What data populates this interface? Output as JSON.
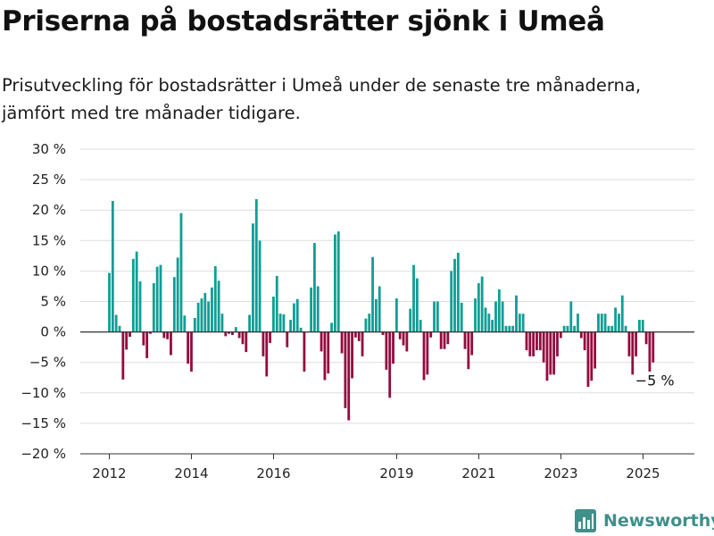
{
  "title": "Priserna på bostadsrätter sjönk i Umeå",
  "subtitle": "Prisutveckling för bostadsrätter i Umeå under de senaste tre månaderna, jämfört med tre månader tidigare.",
  "brand": {
    "name": "Newsworthy",
    "icon": "newsworthy-bar-chart-icon",
    "color": "#3f8f8b"
  },
  "colors": {
    "positive": "#0f9e94",
    "negative": "#940a3f",
    "grid": "#dddddd",
    "axis": "#333333"
  },
  "chart_data": {
    "type": "bar",
    "ylim": [
      -20,
      30
    ],
    "yticks": [
      30,
      25,
      20,
      15,
      10,
      5,
      0,
      -5,
      -10,
      -15,
      -20
    ],
    "ytick_labels": [
      "30 %",
      "25 %",
      "20 %",
      "15 %",
      "10 %",
      "5 %",
      "0 %",
      "−5 %",
      "−10 %",
      "−15 %",
      "−20 %"
    ],
    "xtick_labels": [
      {
        "label": "2012",
        "x": 2012.0
      },
      {
        "label": "2014",
        "x": 2014.0
      },
      {
        "label": "2016",
        "x": 2016.0
      },
      {
        "label": "2019",
        "x": 2019.0
      },
      {
        "label": "2021",
        "x": 2021.0
      },
      {
        "label": "2023",
        "x": 2023.0
      },
      {
        "label": "2025",
        "x": 2025.0
      }
    ],
    "x_start": 2012.0,
    "x_step": 0.0833,
    "values": [
      9.7,
      21.5,
      2.8,
      1.0,
      -7.8,
      -2.9,
      -0.8,
      12.0,
      13.2,
      8.3,
      -2.2,
      -4.3,
      -0.3,
      8.0,
      10.7,
      11.0,
      -1.0,
      -1.2,
      -3.8,
      9.0,
      12.2,
      19.5,
      2.7,
      -5.2,
      -6.5,
      2.3,
      4.8,
      5.5,
      6.4,
      5.0,
      7.3,
      10.8,
      8.4,
      3.0,
      -0.7,
      -0.3,
      -0.5,
      0.8,
      -1.0,
      -2.0,
      -3.3,
      2.8,
      17.8,
      21.8,
      15.0,
      -4.0,
      -7.3,
      -1.8,
      5.8,
      9.2,
      3.0,
      2.9,
      -2.5,
      2.0,
      4.7,
      5.4,
      0.7,
      -6.5,
      0.0,
      7.3,
      14.6,
      7.5,
      -3.2,
      -7.9,
      -6.8,
      1.5,
      16.0,
      16.5,
      -3.5,
      -12.5,
      -14.5,
      -7.6,
      -0.9,
      -1.5,
      -4.0,
      2.2,
      3.0,
      12.3,
      5.4,
      7.5,
      -0.5,
      -6.2,
      -10.8,
      -5.2,
      5.5,
      -1.2,
      -2.2,
      -3.2,
      3.8,
      11.0,
      8.8,
      2.0,
      -7.9,
      -7.0,
      -0.9,
      5.0,
      5.0,
      -2.8,
      -2.8,
      -2.0,
      10.0,
      12.0,
      13.0,
      4.8,
      -2.8,
      -6.1,
      -3.8,
      5.5,
      8.0,
      9.1,
      4.0,
      3.0,
      2.0,
      5.0,
      7.0,
      5.0,
      1.0,
      1.0,
      1.0,
      6.0,
      3.0,
      3.0,
      -3.0,
      -4.0,
      -4.0,
      -3.0,
      -3.0,
      -5.0,
      -8.0,
      -7.0,
      -7.0,
      -4.0,
      -1.0,
      1.0,
      1.0,
      5.0,
      1.0,
      3.0,
      -1.0,
      -3.0,
      -9.0,
      -8.0,
      -6.0,
      3.0,
      3.0,
      3.0,
      1.0,
      1.0,
      4.0,
      3.0,
      6.0,
      1.0,
      -4.0,
      -7.0,
      -4.0,
      2.0,
      2.0,
      -2.0,
      -6.5,
      -5.0
    ],
    "annotations": [
      {
        "text": "−5 %",
        "value": -5.0
      }
    ]
  }
}
